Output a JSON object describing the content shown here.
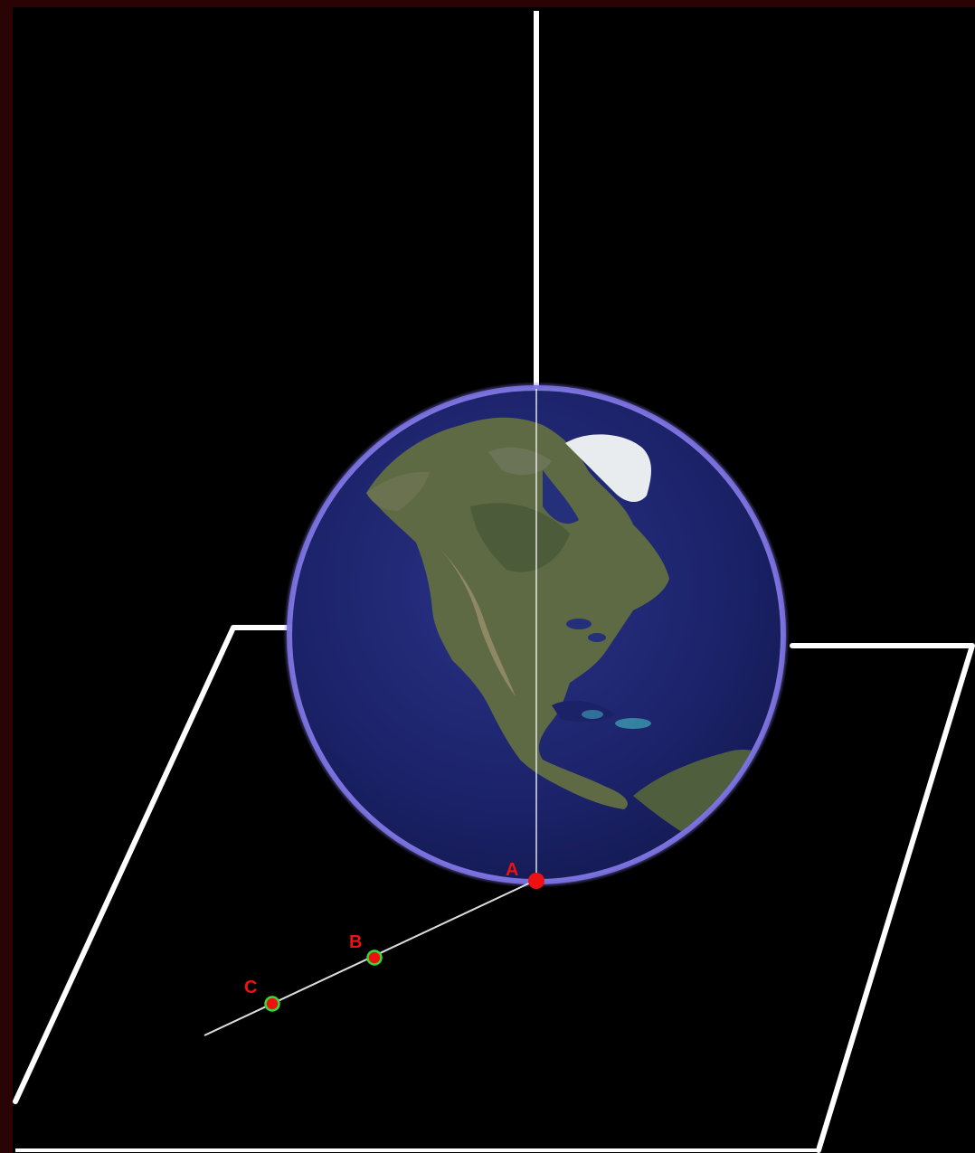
{
  "points": [
    {
      "id": "A",
      "label": "A"
    },
    {
      "id": "B",
      "label": "B"
    },
    {
      "id": "C",
      "label": "C"
    }
  ],
  "colors": {
    "background": "#000000",
    "lines": "#ffffff",
    "point_fill": "#ee1111",
    "point_ring": "#33dd33",
    "label": "#ee1111",
    "atmosphere": "#7b72e0",
    "ocean": "#1b2268"
  }
}
